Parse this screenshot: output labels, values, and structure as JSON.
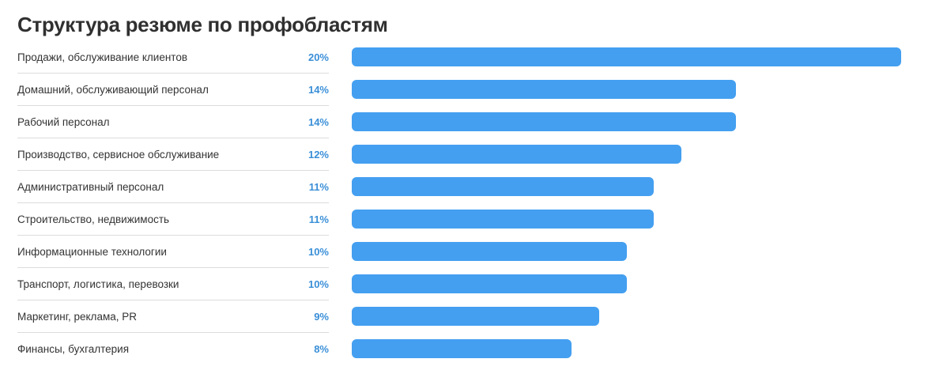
{
  "chart_data": {
    "type": "bar",
    "orientation": "horizontal",
    "title": "Структура резюме по профобластям",
    "categories": [
      "Продажи, обслуживание клиентов",
      "Домашний, обслуживающий персонал",
      "Рабочий персонал",
      "Производство, сервисное обслуживание",
      "Административный персонал",
      "Строительство, недвижимость",
      "Информационные технологии",
      "Транспорт, логистика, перевозки",
      "Маркетинг, реклама, PR",
      "Финансы, бухгалтерия"
    ],
    "values": [
      20,
      14,
      14,
      12,
      11,
      11,
      10,
      10,
      9,
      8
    ],
    "value_labels": [
      "20%",
      "14%",
      "14%",
      "12%",
      "11%",
      "11%",
      "10%",
      "10%",
      "9%",
      "8%"
    ],
    "unit": "%",
    "xlim": [
      0,
      20
    ],
    "grid": false,
    "legend": "none",
    "bar_color": "#449ff0",
    "value_label_color": "#3a8fd8"
  }
}
